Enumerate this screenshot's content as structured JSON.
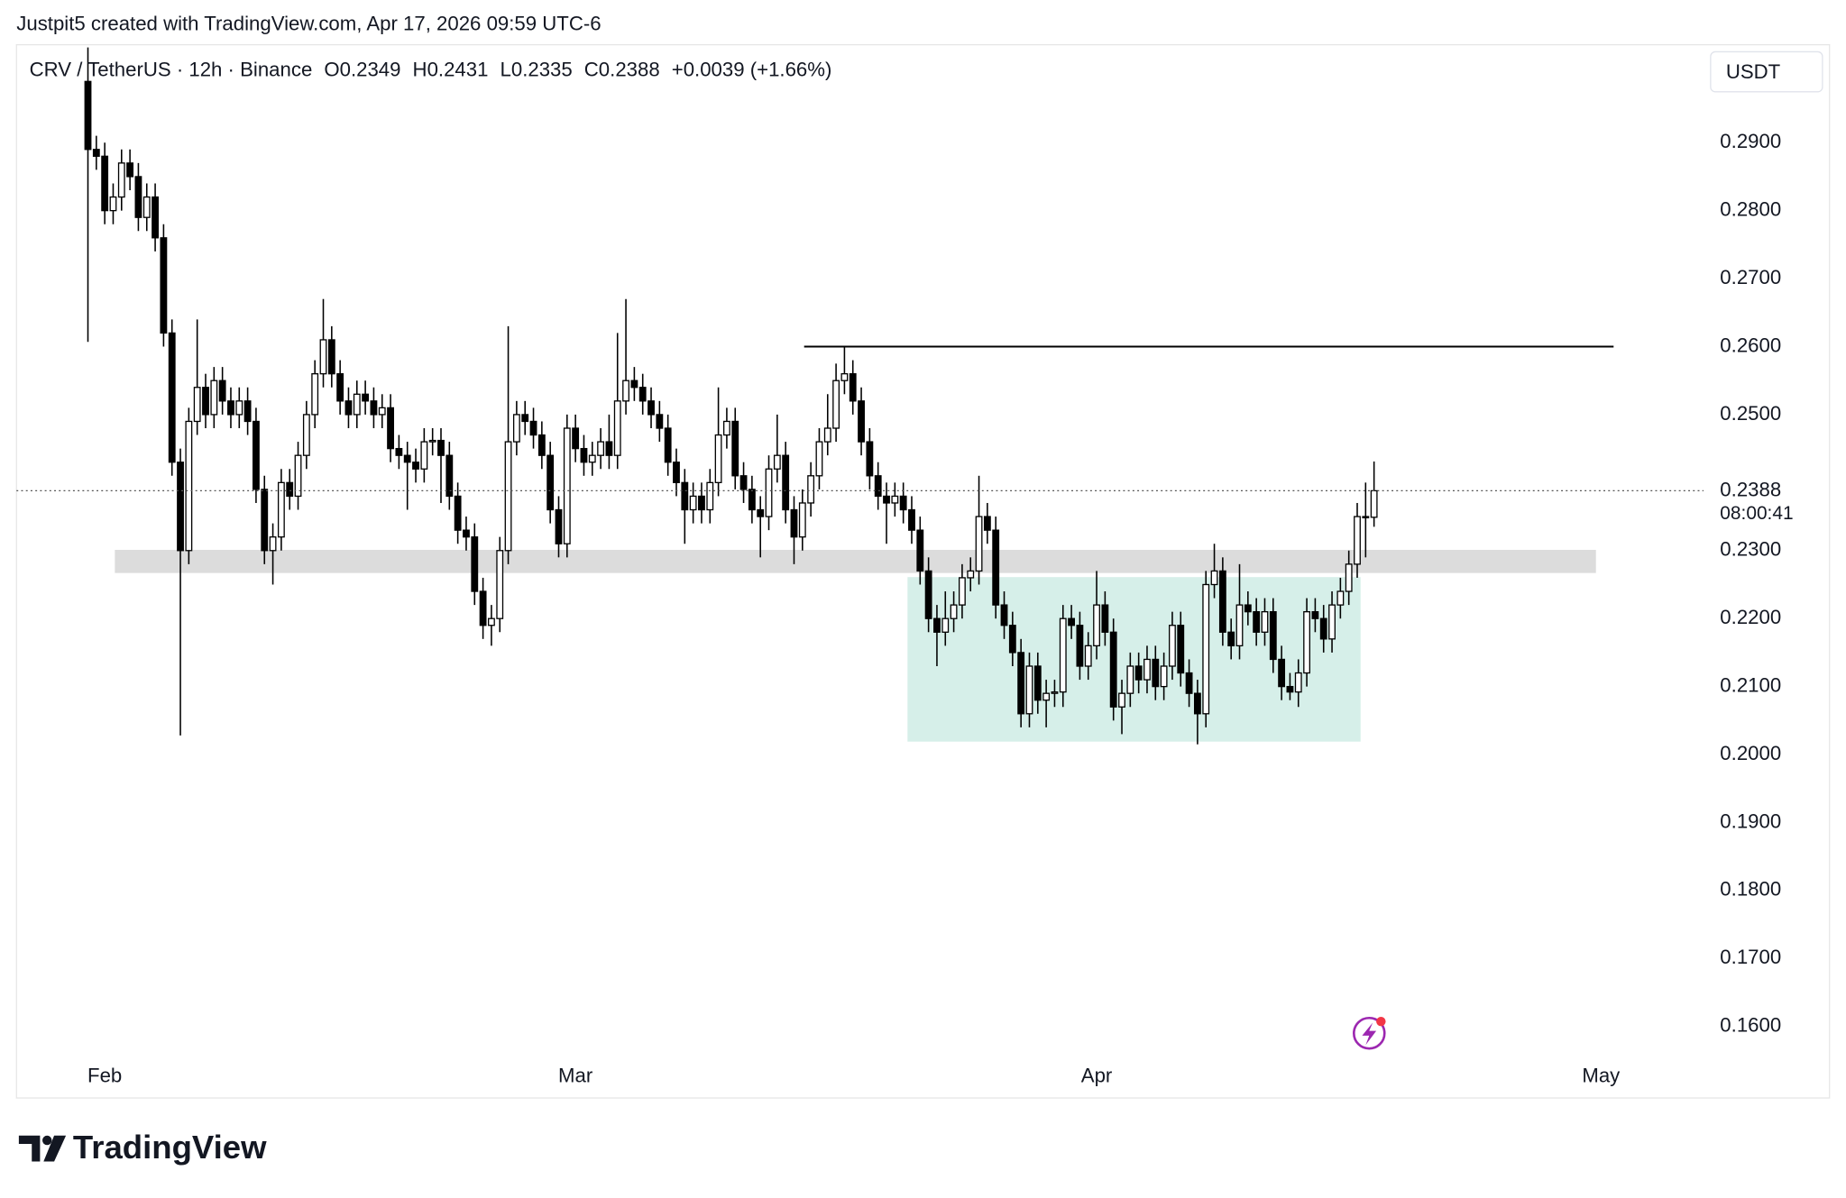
{
  "header": {
    "credit": "Justpit5 created with TradingView.com, Apr 17, 2026 09:59 UTC-6",
    "brand": "TradingView"
  },
  "chart_data": {
    "type": "candlestick",
    "symbol": "CRV / TetherUS · 12h · Binance",
    "ohlc_labels": [
      "O",
      "H",
      "L",
      "C"
    ],
    "change": "+0.0039 (+1.66%)",
    "currency": "USDT",
    "countdown": "08:00:41",
    "up_color": "#ffffff",
    "down_color": "#000000",
    "grid": false,
    "xlim": [
      -8.5,
      192.2
    ],
    "xticks": [
      {
        "value": 2,
        "label": "Feb"
      },
      {
        "value": 58,
        "label": "Mar"
      },
      {
        "value": 120,
        "label": "Apr"
      },
      {
        "value": 180,
        "label": "May"
      }
    ],
    "ylim": [
      0.1552,
      0.3044
    ],
    "yticks": [
      {
        "value": 0.16,
        "label": "0.1600"
      },
      {
        "value": 0.17,
        "label": "0.1700"
      },
      {
        "value": 0.18,
        "label": "0.1800"
      },
      {
        "value": 0.19,
        "label": "0.1900"
      },
      {
        "value": 0.2,
        "label": "0.2000"
      },
      {
        "value": 0.21,
        "label": "0.2100"
      },
      {
        "value": 0.22,
        "label": "0.2200"
      },
      {
        "value": 0.23,
        "label": "0.2300"
      },
      {
        "value": 0.25,
        "label": "0.2500"
      },
      {
        "value": 0.26,
        "label": "0.2600"
      },
      {
        "value": 0.27,
        "label": "0.2700"
      },
      {
        "value": 0.28,
        "label": "0.2800"
      },
      {
        "value": 0.29,
        "label": "0.2900"
      }
    ],
    "levels": [
      {
        "price": 0.26,
        "from": 85.2,
        "to": 181.5,
        "color": "#000000"
      }
    ],
    "zones": [
      {
        "from": 3.2,
        "to": 179.4,
        "low": 0.2267,
        "high": 0.2301,
        "color": "#dcdcdc"
      },
      {
        "from": 97.5,
        "to": 151.4,
        "low": 0.2019,
        "high": 0.2261,
        "color": "#d6efe9"
      }
    ],
    "candles": [
      [
        0.299,
        0.304,
        0.2607,
        0.289
      ],
      [
        0.289,
        0.291,
        0.286,
        0.288
      ],
      [
        0.288,
        0.29,
        0.278,
        0.28
      ],
      [
        0.28,
        0.284,
        0.278,
        0.282
      ],
      [
        0.282,
        0.289,
        0.28,
        0.287
      ],
      [
        0.287,
        0.289,
        0.283,
        0.285
      ],
      [
        0.285,
        0.287,
        0.277,
        0.279
      ],
      [
        0.279,
        0.284,
        0.277,
        0.282
      ],
      [
        0.282,
        0.284,
        0.274,
        0.276
      ],
      [
        0.276,
        0.278,
        0.26,
        0.262
      ],
      [
        0.262,
        0.264,
        0.241,
        0.243
      ],
      [
        0.243,
        0.245,
        0.2028,
        0.23
      ],
      [
        0.23,
        0.251,
        0.228,
        0.249
      ],
      [
        0.249,
        0.264,
        0.247,
        0.254
      ],
      [
        0.254,
        0.256,
        0.248,
        0.25
      ],
      [
        0.25,
        0.257,
        0.248,
        0.255
      ],
      [
        0.255,
        0.257,
        0.25,
        0.252
      ],
      [
        0.252,
        0.254,
        0.248,
        0.25
      ],
      [
        0.25,
        0.254,
        0.248,
        0.252
      ],
      [
        0.252,
        0.254,
        0.247,
        0.249
      ],
      [
        0.249,
        0.251,
        0.237,
        0.239
      ],
      [
        0.239,
        0.241,
        0.228,
        0.23
      ],
      [
        0.23,
        0.234,
        0.225,
        0.232
      ],
      [
        0.232,
        0.242,
        0.23,
        0.24
      ],
      [
        0.24,
        0.242,
        0.236,
        0.238
      ],
      [
        0.238,
        0.246,
        0.236,
        0.244
      ],
      [
        0.244,
        0.252,
        0.242,
        0.25
      ],
      [
        0.25,
        0.258,
        0.248,
        0.256
      ],
      [
        0.256,
        0.267,
        0.254,
        0.261
      ],
      [
        0.261,
        0.263,
        0.254,
        0.256
      ],
      [
        0.256,
        0.258,
        0.25,
        0.252
      ],
      [
        0.252,
        0.254,
        0.248,
        0.25
      ],
      [
        0.25,
        0.255,
        0.248,
        0.253
      ],
      [
        0.253,
        0.255,
        0.25,
        0.252
      ],
      [
        0.252,
        0.254,
        0.248,
        0.25
      ],
      [
        0.25,
        0.253,
        0.248,
        0.251
      ],
      [
        0.251,
        0.253,
        0.243,
        0.245
      ],
      [
        0.245,
        0.247,
        0.242,
        0.244
      ],
      [
        0.244,
        0.246,
        0.236,
        0.243
      ],
      [
        0.243,
        0.245,
        0.24,
        0.242
      ],
      [
        0.242,
        0.248,
        0.24,
        0.246
      ],
      [
        0.246,
        0.248,
        0.244,
        0.2462
      ],
      [
        0.2462,
        0.248,
        0.237,
        0.244
      ],
      [
        0.244,
        0.246,
        0.236,
        0.238
      ],
      [
        0.238,
        0.24,
        0.231,
        0.233
      ],
      [
        0.233,
        0.235,
        0.23,
        0.232
      ],
      [
        0.232,
        0.234,
        0.222,
        0.224
      ],
      [
        0.224,
        0.226,
        0.217,
        0.219
      ],
      [
        0.219,
        0.222,
        0.216,
        0.22
      ],
      [
        0.22,
        0.232,
        0.218,
        0.23
      ],
      [
        0.23,
        0.263,
        0.228,
        0.246
      ],
      [
        0.246,
        0.252,
        0.244,
        0.25
      ],
      [
        0.25,
        0.252,
        0.247,
        0.249
      ],
      [
        0.249,
        0.251,
        0.245,
        0.247
      ],
      [
        0.247,
        0.249,
        0.242,
        0.244
      ],
      [
        0.244,
        0.246,
        0.234,
        0.236
      ],
      [
        0.236,
        0.238,
        0.229,
        0.231
      ],
      [
        0.231,
        0.25,
        0.229,
        0.248
      ],
      [
        0.248,
        0.25,
        0.243,
        0.245
      ],
      [
        0.245,
        0.247,
        0.241,
        0.243
      ],
      [
        0.243,
        0.246,
        0.241,
        0.244
      ],
      [
        0.244,
        0.248,
        0.242,
        0.246
      ],
      [
        0.246,
        0.25,
        0.242,
        0.244
      ],
      [
        0.244,
        0.262,
        0.242,
        0.252
      ],
      [
        0.252,
        0.267,
        0.25,
        0.255
      ],
      [
        0.255,
        0.257,
        0.252,
        0.254
      ],
      [
        0.254,
        0.256,
        0.25,
        0.252
      ],
      [
        0.252,
        0.254,
        0.248,
        0.25
      ],
      [
        0.25,
        0.252,
        0.246,
        0.248
      ],
      [
        0.248,
        0.25,
        0.241,
        0.243
      ],
      [
        0.243,
        0.245,
        0.238,
        0.24
      ],
      [
        0.24,
        0.242,
        0.231,
        0.236
      ],
      [
        0.236,
        0.24,
        0.234,
        0.238
      ],
      [
        0.238,
        0.24,
        0.234,
        0.236
      ],
      [
        0.236,
        0.242,
        0.234,
        0.24
      ],
      [
        0.24,
        0.254,
        0.238,
        0.247
      ],
      [
        0.247,
        0.251,
        0.245,
        0.249
      ],
      [
        0.249,
        0.251,
        0.239,
        0.241
      ],
      [
        0.241,
        0.243,
        0.237,
        0.239
      ],
      [
        0.239,
        0.241,
        0.234,
        0.236
      ],
      [
        0.236,
        0.238,
        0.229,
        0.235
      ],
      [
        0.235,
        0.244,
        0.233,
        0.242
      ],
      [
        0.242,
        0.25,
        0.24,
        0.244
      ],
      [
        0.244,
        0.246,
        0.234,
        0.236
      ],
      [
        0.236,
        0.238,
        0.228,
        0.232
      ],
      [
        0.232,
        0.239,
        0.23,
        0.237
      ],
      [
        0.237,
        0.243,
        0.235,
        0.241
      ],
      [
        0.241,
        0.248,
        0.239,
        0.246
      ],
      [
        0.246,
        0.253,
        0.244,
        0.248
      ],
      [
        0.248,
        0.2575,
        0.246,
        0.255
      ],
      [
        0.255,
        0.26,
        0.253,
        0.256
      ],
      [
        0.256,
        0.258,
        0.25,
        0.252
      ],
      [
        0.252,
        0.254,
        0.244,
        0.246
      ],
      [
        0.246,
        0.248,
        0.239,
        0.241
      ],
      [
        0.241,
        0.243,
        0.236,
        0.238
      ],
      [
        0.238,
        0.24,
        0.231,
        0.237
      ],
      [
        0.237,
        0.24,
        0.235,
        0.238
      ],
      [
        0.238,
        0.24,
        0.234,
        0.236
      ],
      [
        0.236,
        0.238,
        0.231,
        0.233
      ],
      [
        0.233,
        0.235,
        0.225,
        0.227
      ],
      [
        0.227,
        0.229,
        0.218,
        0.22
      ],
      [
        0.22,
        0.222,
        0.213,
        0.218
      ],
      [
        0.218,
        0.224,
        0.216,
        0.22
      ],
      [
        0.22,
        0.224,
        0.218,
        0.222
      ],
      [
        0.222,
        0.228,
        0.22,
        0.226
      ],
      [
        0.226,
        0.229,
        0.224,
        0.227
      ],
      [
        0.227,
        0.241,
        0.225,
        0.235
      ],
      [
        0.235,
        0.237,
        0.231,
        0.233
      ],
      [
        0.233,
        0.235,
        0.22,
        0.222
      ],
      [
        0.222,
        0.224,
        0.217,
        0.219
      ],
      [
        0.219,
        0.221,
        0.213,
        0.215
      ],
      [
        0.215,
        0.217,
        0.204,
        0.206
      ],
      [
        0.206,
        0.215,
        0.204,
        0.213
      ],
      [
        0.213,
        0.215,
        0.206,
        0.208
      ],
      [
        0.208,
        0.211,
        0.204,
        0.209
      ],
      [
        0.209,
        0.211,
        0.207,
        0.2092
      ],
      [
        0.2092,
        0.222,
        0.207,
        0.22
      ],
      [
        0.22,
        0.222,
        0.217,
        0.219
      ],
      [
        0.219,
        0.221,
        0.211,
        0.213
      ],
      [
        0.213,
        0.218,
        0.211,
        0.216
      ],
      [
        0.216,
        0.227,
        0.214,
        0.222
      ],
      [
        0.222,
        0.224,
        0.216,
        0.218
      ],
      [
        0.218,
        0.22,
        0.205,
        0.207
      ],
      [
        0.207,
        0.211,
        0.203,
        0.209
      ],
      [
        0.209,
        0.215,
        0.207,
        0.213
      ],
      [
        0.213,
        0.215,
        0.209,
        0.211
      ],
      [
        0.211,
        0.216,
        0.209,
        0.214
      ],
      [
        0.214,
        0.216,
        0.208,
        0.21
      ],
      [
        0.21,
        0.215,
        0.208,
        0.213
      ],
      [
        0.213,
        0.221,
        0.211,
        0.219
      ],
      [
        0.219,
        0.221,
        0.21,
        0.212
      ],
      [
        0.212,
        0.214,
        0.207,
        0.209
      ],
      [
        0.209,
        0.211,
        0.2015,
        0.206
      ],
      [
        0.206,
        0.227,
        0.204,
        0.225
      ],
      [
        0.225,
        0.231,
        0.223,
        0.227
      ],
      [
        0.227,
        0.229,
        0.216,
        0.218
      ],
      [
        0.218,
        0.22,
        0.214,
        0.216
      ],
      [
        0.216,
        0.228,
        0.214,
        0.222
      ],
      [
        0.222,
        0.224,
        0.219,
        0.221
      ],
      [
        0.221,
        0.223,
        0.216,
        0.218
      ],
      [
        0.218,
        0.223,
        0.216,
        0.221
      ],
      [
        0.221,
        0.223,
        0.212,
        0.214
      ],
      [
        0.214,
        0.216,
        0.208,
        0.21
      ],
      [
        0.21,
        0.212,
        0.208,
        0.2092
      ],
      [
        0.2092,
        0.214,
        0.207,
        0.212
      ],
      [
        0.212,
        0.223,
        0.21,
        0.221
      ],
      [
        0.221,
        0.223,
        0.218,
        0.22
      ],
      [
        0.22,
        0.222,
        0.215,
        0.217
      ],
      [
        0.217,
        0.224,
        0.215,
        0.222
      ],
      [
        0.222,
        0.226,
        0.22,
        0.224
      ],
      [
        0.224,
        0.23,
        0.222,
        0.228
      ],
      [
        0.228,
        0.237,
        0.226,
        0.235
      ],
      [
        0.235,
        0.24,
        0.229,
        0.2349
      ],
      [
        0.2349,
        0.2431,
        0.2335,
        0.2388
      ]
    ]
  }
}
